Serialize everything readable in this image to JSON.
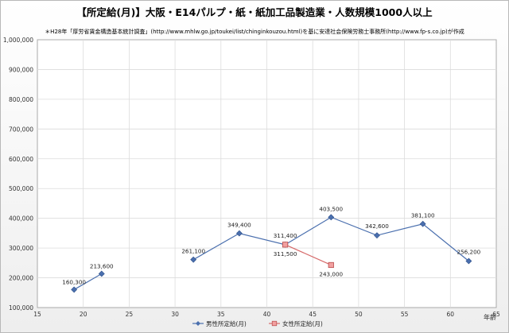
{
  "chart_data": {
    "type": "line",
    "title": "【所定給(月)】大阪・E14パルプ・紙・紙加工品製造業・人数規模1000人以上",
    "subtitle": "＊H28年「厚労省賃金構造基本統計調査」(http://www.mhlw.go.jp/toukei/list/chinginkouzou.html)を基に安達社会保険労務士事務所(http://www.fp-s.co.jp)が作成",
    "xlabel": "年齢",
    "ylabel": "",
    "xlim": [
      15,
      65
    ],
    "ylim": [
      100000,
      1000000
    ],
    "x_ticks": [
      "15",
      "20",
      "25",
      "30",
      "35",
      "40",
      "45",
      "50",
      "55",
      "60",
      "65"
    ],
    "y_ticks": [
      "100,000",
      "200,000",
      "300,000",
      "400,000",
      "500,000",
      "600,000",
      "700,000",
      "800,000",
      "900,000",
      "1,000,000"
    ],
    "grid": true,
    "legend_position": "bottom",
    "series": [
      {
        "name": "男性所定給(月)",
        "color": "#4a6fae",
        "marker": "diamond",
        "segments": [
          [
            {
              "x": 19,
              "y": 160300,
              "label": "160,300"
            },
            {
              "x": 22,
              "y": 213600,
              "label": "213,600"
            }
          ],
          [
            {
              "x": 32,
              "y": 261100,
              "label": "261,100"
            },
            {
              "x": 37,
              "y": 349400,
              "label": "349,400"
            },
            {
              "x": 42,
              "y": 311400,
              "label": "311,400"
            },
            {
              "x": 47,
              "y": 403500,
              "label": "403,500"
            },
            {
              "x": 52,
              "y": 342600,
              "label": "342,600"
            },
            {
              "x": 57,
              "y": 381100,
              "label": "381,100"
            },
            {
              "x": 62,
              "y": 256200,
              "label": "256,200"
            }
          ]
        ]
      },
      {
        "name": "女性所定給(月)",
        "color": "#d66a6a",
        "marker": "square",
        "segments": [
          [
            {
              "x": 42,
              "y": 311500,
              "label": "311,500"
            },
            {
              "x": 47,
              "y": 243000,
              "label": "243,000"
            }
          ]
        ]
      }
    ]
  }
}
